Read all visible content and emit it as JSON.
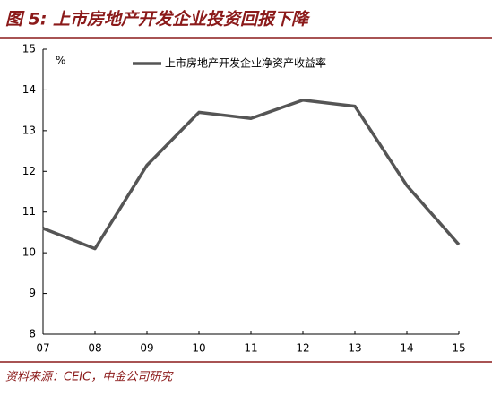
{
  "chart_data": {
    "type": "line",
    "title": "图 5: 上市房地产开发企业投资回报下降",
    "source": "资料来源：CEIC，中金公司研究",
    "y_label": "%",
    "categories": [
      "07",
      "08",
      "09",
      "10",
      "11",
      "12",
      "13",
      "14",
      "15"
    ],
    "series": [
      {
        "name": "上市房地产开发企业净资产收益率",
        "color": "#555555",
        "values": [
          10.6,
          10.1,
          12.15,
          13.45,
          13.3,
          13.75,
          13.6,
          11.65,
          10.2
        ]
      }
    ],
    "ylim": [
      8,
      15
    ],
    "yticks": [
      8,
      9,
      10,
      11,
      12,
      13,
      14,
      15
    ],
    "grid": false,
    "legend": "top"
  }
}
